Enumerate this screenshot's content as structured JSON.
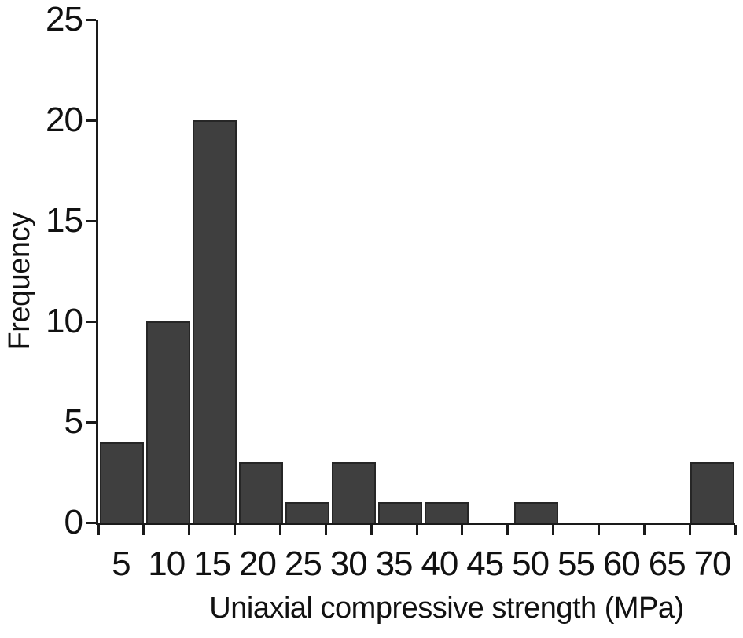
{
  "chart_data": {
    "type": "bar",
    "subtype": "histogram",
    "categories": [
      "5",
      "10",
      "15",
      "20",
      "25",
      "30",
      "35",
      "40",
      "45",
      "50",
      "55",
      "60",
      "65",
      "70"
    ],
    "values": [
      4,
      10,
      20,
      3,
      1,
      3,
      1,
      1,
      0,
      1,
      0,
      0,
      0,
      3
    ],
    "title": "",
    "xlabel": "Uniaxial compressive strength (MPa)",
    "ylabel": "Frequency",
    "ylim": [
      0,
      25
    ],
    "yticks": [
      0,
      5,
      10,
      15,
      20,
      25
    ],
    "grid": false,
    "legend": "none",
    "colors": {
      "bar_fill": "#3F3F3F",
      "bar_border": "#262626",
      "axis": "#1A1A1A",
      "text": "#111111",
      "background": "#FFFFFF"
    }
  }
}
